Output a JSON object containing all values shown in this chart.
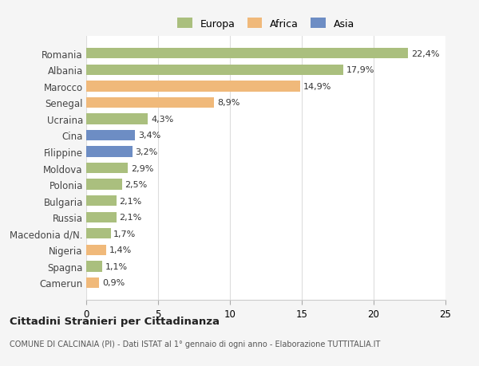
{
  "countries": [
    "Romania",
    "Albania",
    "Marocco",
    "Senegal",
    "Ucraina",
    "Cina",
    "Filippine",
    "Moldova",
    "Polonia",
    "Bulgaria",
    "Russia",
    "Macedonia d/N.",
    "Nigeria",
    "Spagna",
    "Camerun"
  ],
  "values": [
    22.4,
    17.9,
    14.9,
    8.9,
    4.3,
    3.4,
    3.2,
    2.9,
    2.5,
    2.1,
    2.1,
    1.7,
    1.4,
    1.1,
    0.9
  ],
  "labels": [
    "22,4%",
    "17,9%",
    "14,9%",
    "8,9%",
    "4,3%",
    "3,4%",
    "3,2%",
    "2,9%",
    "2,5%",
    "2,1%",
    "2,1%",
    "1,7%",
    "1,4%",
    "1,1%",
    "0,9%"
  ],
  "colors": [
    "#aabf7e",
    "#aabf7e",
    "#f0b97a",
    "#f0b97a",
    "#aabf7e",
    "#6d8dc4",
    "#6d8dc4",
    "#aabf7e",
    "#aabf7e",
    "#aabf7e",
    "#aabf7e",
    "#aabf7e",
    "#f0b97a",
    "#aabf7e",
    "#f0b97a"
  ],
  "legend_labels": [
    "Europa",
    "Africa",
    "Asia"
  ],
  "legend_colors": [
    "#aabf7e",
    "#f0b97a",
    "#6d8dc4"
  ],
  "title": "Cittadini Stranieri per Cittadinanza",
  "subtitle": "COMUNE DI CALCINAIA (PI) - Dati ISTAT al 1° gennaio di ogni anno - Elaborazione TUTTITALIA.IT",
  "xlim": [
    0,
    25
  ],
  "xticks": [
    0,
    5,
    10,
    15,
    20,
    25
  ],
  "bg_color": "#f5f5f5",
  "plot_bg_color": "#ffffff"
}
